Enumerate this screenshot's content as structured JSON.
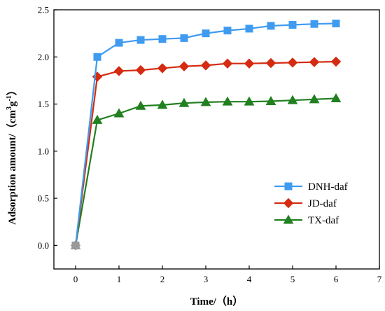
{
  "chart_data": {
    "type": "line",
    "xlabel": "Time/（h）",
    "ylabel_prefix": "Adsorption amount/（cm",
    "ylabel_sup1": "3",
    "ylabel_mid": "g",
    "ylabel_sup2": "-1",
    "ylabel_suffix": "）",
    "xlim": [
      -0.5,
      7
    ],
    "ylim": [
      -0.25,
      2.5
    ],
    "xticks": [
      0,
      1,
      2,
      3,
      4,
      5,
      6,
      7
    ],
    "yticks": [
      0.0,
      0.5,
      1.0,
      1.5,
      2.0,
      2.5
    ],
    "xtick_labels": [
      "0",
      "1",
      "2",
      "3",
      "4",
      "5",
      "6",
      "7"
    ],
    "ytick_labels": [
      "0.0",
      "0.5",
      "1.0",
      "1.5",
      "2.0",
      "2.5"
    ],
    "grid": false,
    "legend_position": "right",
    "x": [
      0,
      0.5,
      1,
      1.5,
      2,
      2.5,
      3,
      3.5,
      4,
      4.5,
      5,
      5.5,
      6
    ],
    "series": [
      {
        "name": "DNH-daf",
        "color": "#3f9bf0",
        "marker": "square",
        "values": [
          0,
          2.0,
          2.15,
          2.18,
          2.19,
          2.2,
          2.25,
          2.28,
          2.3,
          2.33,
          2.34,
          2.35,
          2.355
        ]
      },
      {
        "name": "JD-daf",
        "color": "#d42b11",
        "marker": "diamond",
        "values": [
          0,
          1.79,
          1.85,
          1.86,
          1.88,
          1.9,
          1.91,
          1.93,
          1.93,
          1.935,
          1.94,
          1.945,
          1.95
        ]
      },
      {
        "name": "TX-daf",
        "color": "#21801f",
        "marker": "triangle",
        "values": [
          0,
          1.33,
          1.4,
          1.48,
          1.49,
          1.51,
          1.52,
          1.525,
          1.525,
          1.53,
          1.54,
          1.55,
          1.56
        ]
      }
    ]
  }
}
